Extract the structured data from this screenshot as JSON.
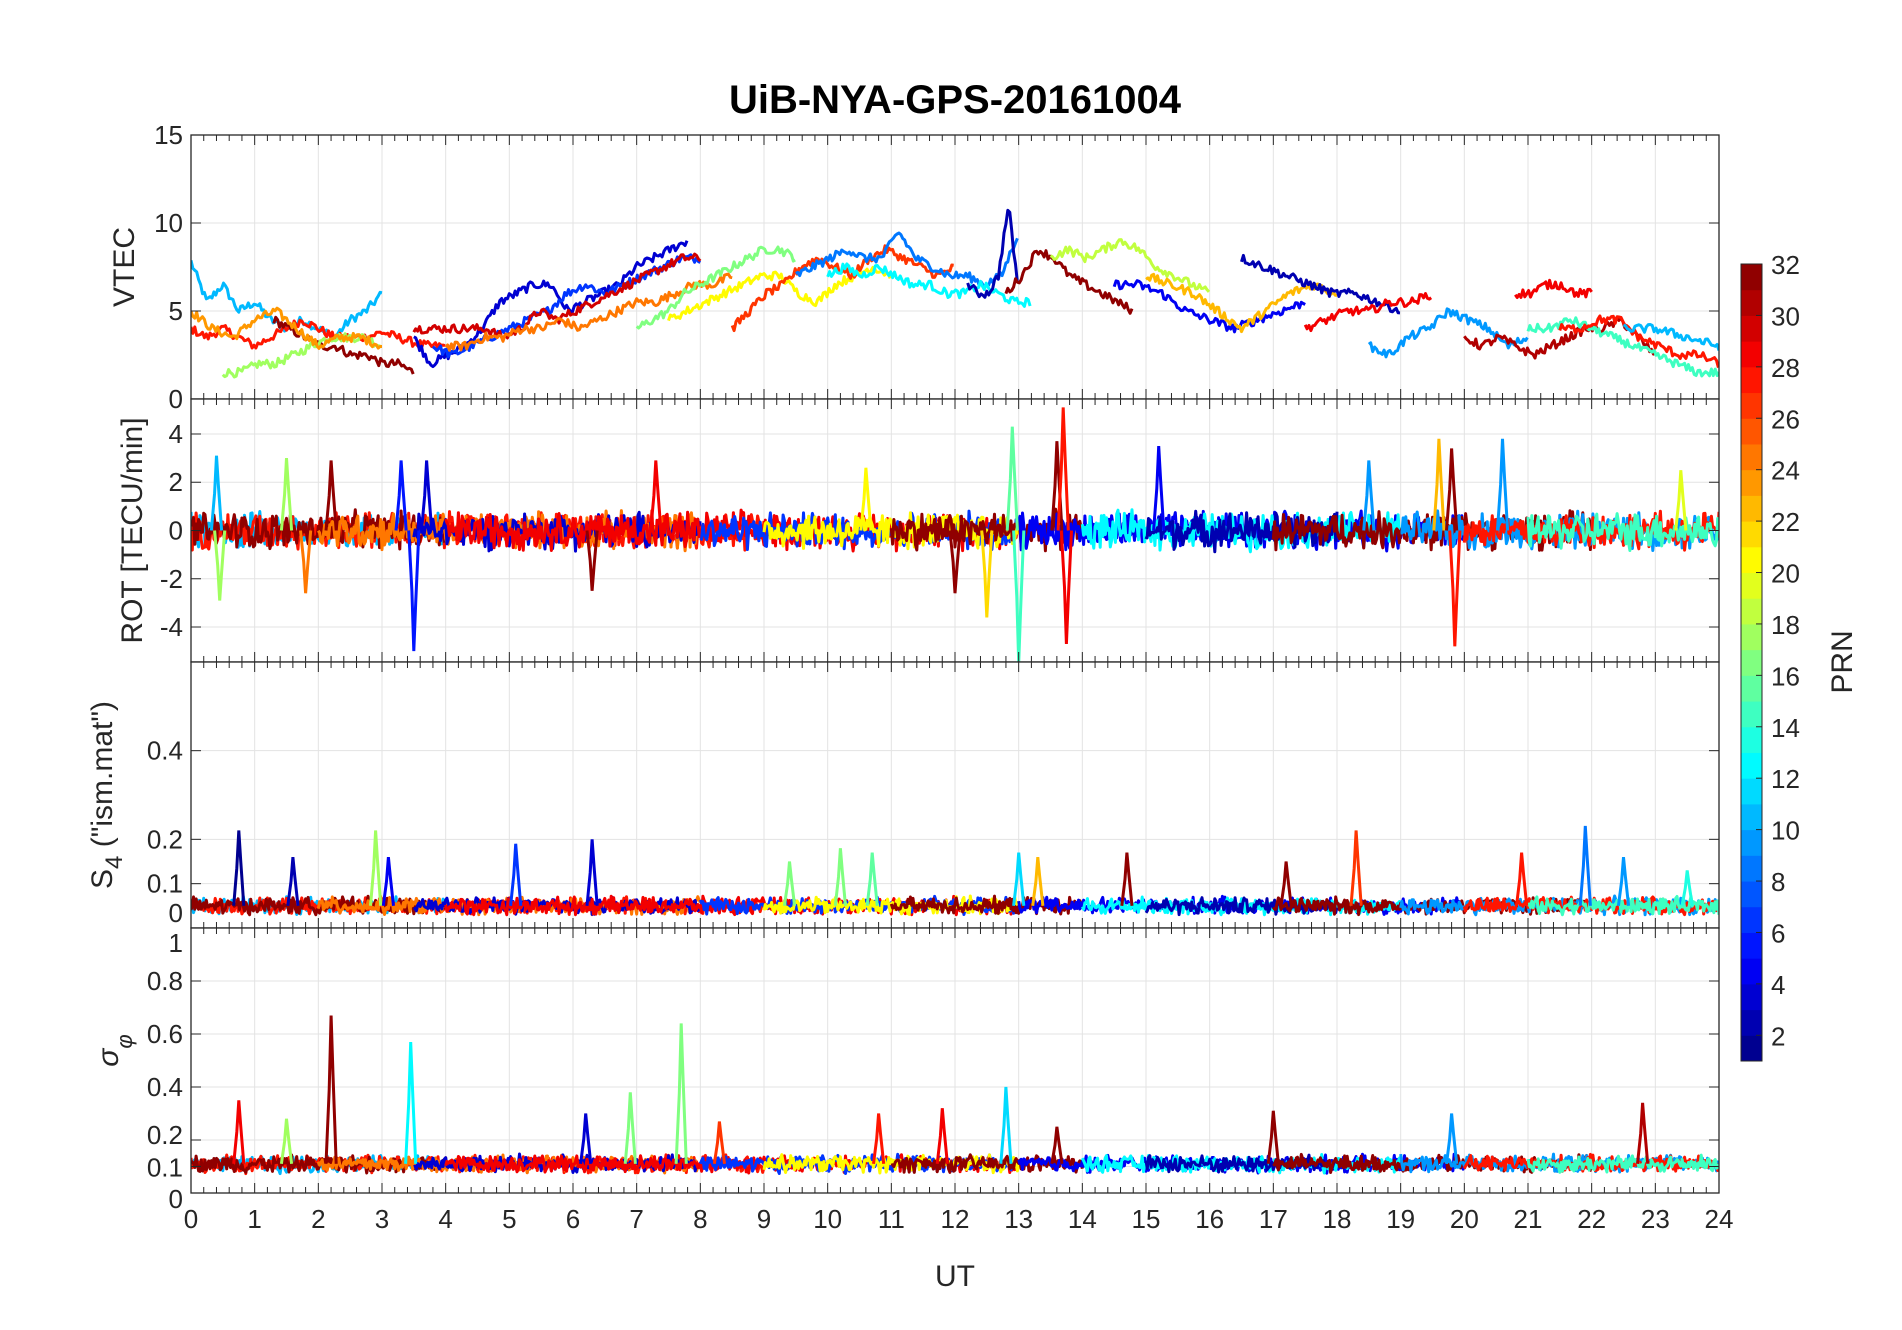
{
  "chart_data": {
    "type": "line",
    "title": "UiB-NYA-GPS-20161004",
    "xlabel": "UT",
    "xlim": [
      0,
      24
    ],
    "xticks": [
      "0",
      "1",
      "2",
      "3",
      "4",
      "5",
      "6",
      "7",
      "8",
      "9",
      "10",
      "11",
      "12",
      "13",
      "14",
      "15",
      "16",
      "17",
      "18",
      "19",
      "20",
      "21",
      "22",
      "23",
      "24"
    ],
    "grid": true,
    "colorbar": {
      "label": "PRN",
      "range": [
        1,
        32
      ],
      "colormap": "jet",
      "ticks": [
        "2",
        "4",
        "6",
        "8",
        "10",
        "12",
        "14",
        "16",
        "18",
        "20",
        "22",
        "24",
        "26",
        "28",
        "30",
        "32"
      ]
    },
    "panels": [
      {
        "id": "vtec",
        "ylabel": "VTEC",
        "ylim": [
          0,
          15
        ],
        "yticks": [
          {
            "v": 0,
            "t": "0"
          },
          {
            "v": 5,
            "t": "5"
          },
          {
            "v": 10,
            "t": "10"
          },
          {
            "v": 15,
            "t": "15"
          }
        ],
        "series": [
          {
            "prn": 10,
            "t0": 0,
            "t1": 3,
            "values": [
              7.8,
              5.5,
              6.5,
              5,
              5.5,
              4.5,
              4,
              4.5,
              4,
              3.5,
              4.5,
              5,
              6
            ]
          },
          {
            "prn": 27,
            "t0": 0,
            "t1": 4,
            "values": [
              4,
              3.5,
              4,
              3.5,
              3,
              3.5,
              4,
              4.5,
              4,
              3.5,
              3.5,
              3.5,
              3.8,
              3.5,
              3.2,
              3,
              3
            ]
          },
          {
            "prn": 31,
            "t0": 1.3,
            "t1": 3.5,
            "values": [
              4.5,
              4,
              3.5,
              3,
              3,
              2.5,
              2.5,
              2,
              2,
              1.5
            ]
          },
          {
            "prn": 17,
            "t0": 0.5,
            "t1": 3,
            "values": [
              1.5,
              1.5,
              2,
              2,
              2.5,
              3,
              3.5,
              3.5,
              3.5,
              3
            ]
          },
          {
            "prn": 23,
            "t0": 0,
            "t1": 3,
            "values": [
              5,
              4,
              3.5,
              4.5,
              5,
              4,
              3,
              3.5,
              3.5,
              3
            ]
          },
          {
            "prn": 3,
            "t0": 3.5,
            "t1": 7.8,
            "values": [
              3.5,
              2,
              2.5,
              3,
              4,
              5.5,
              6,
              6.5,
              6.5,
              5,
              5.5,
              6,
              6.5,
              7.5,
              8,
              8.5,
              9
            ]
          },
          {
            "prn": 6,
            "t0": 3.8,
            "t1": 8,
            "values": [
              3,
              2.5,
              3,
              3.5,
              4,
              4.5,
              5,
              6,
              6.5,
              6,
              6.5,
              7,
              7.5,
              8,
              8
            ]
          },
          {
            "prn": 29,
            "t0": 3.5,
            "t1": 8,
            "values": [
              4,
              4,
              4,
              4,
              4,
              3.5,
              4,
              5,
              4.5,
              5,
              5.5,
              6,
              6.5,
              7,
              7.5,
              8,
              8
            ]
          },
          {
            "prn": 24,
            "t0": 4,
            "t1": 8.5,
            "values": [
              3,
              3,
              3.5,
              3.5,
              4,
              4,
              4.5,
              4,
              4.5,
              5,
              5.5,
              5.5,
              6,
              6.5,
              6.5,
              7
            ]
          },
          {
            "prn": 16,
            "t0": 7,
            "t1": 9.5,
            "values": [
              4,
              4.5,
              5,
              6,
              6.5,
              7,
              7.5,
              8,
              8.5,
              8.5,
              8
            ]
          },
          {
            "prn": 20,
            "t0": 7.5,
            "t1": 11,
            "values": [
              4.5,
              5,
              5.5,
              6,
              6.5,
              7,
              7,
              6,
              5.5,
              6.5,
              7,
              7.5,
              7
            ]
          },
          {
            "prn": 26,
            "t0": 8.5,
            "t1": 12,
            "values": [
              4,
              5,
              6,
              6.5,
              7.5,
              8,
              7.5,
              7,
              8,
              8.5,
              8,
              7.5,
              7,
              7.5
            ]
          },
          {
            "prn": 8,
            "t0": 9.5,
            "t1": 13,
            "values": [
              7,
              7.5,
              8,
              8.5,
              8,
              8,
              9.5,
              8,
              7.5,
              7,
              7,
              6.5,
              7,
              9.5
            ]
          },
          {
            "prn": 12,
            "t0": 10,
            "t1": 13.2,
            "values": [
              7,
              7.5,
              7,
              7.5,
              7,
              6.5,
              6.5,
              6,
              6,
              6.5,
              6,
              5.5,
              5.5
            ]
          },
          {
            "prn": 2,
            "t0": 12.2,
            "t1": 13,
            "values": [
              6.5,
              6,
              6,
              7,
              11,
              6
            ]
          },
          {
            "prn": 31,
            "t0": 12.8,
            "t1": 14.8,
            "values": [
              6,
              7,
              8.5,
              8,
              7,
              6.5,
              6,
              5.5,
              5
            ]
          },
          {
            "prn": 18,
            "t0": 13.5,
            "t1": 16,
            "values": [
              8,
              8.5,
              8,
              8.5,
              9,
              8.5,
              7.5,
              7,
              6.5,
              6
            ]
          },
          {
            "prn": 4,
            "t0": 14.5,
            "t1": 17.5,
            "values": [
              6.5,
              6.5,
              6,
              5,
              4.5,
              4,
              4.5,
              5,
              5.5
            ]
          },
          {
            "prn": 22,
            "t0": 15,
            "t1": 18,
            "values": [
              7,
              6.5,
              6,
              5,
              4,
              5,
              6,
              6.5,
              6
            ]
          },
          {
            "prn": 2,
            "t0": 16.5,
            "t1": 19,
            "values": [
              8,
              7.5,
              7,
              6.5,
              6,
              6,
              5.5,
              5
            ]
          },
          {
            "prn": 28,
            "t0": 17.5,
            "t1": 19.5,
            "values": [
              4,
              4.5,
              5,
              5,
              5.5,
              5.5,
              6
            ]
          },
          {
            "prn": 9,
            "t0": 18.5,
            "t1": 21,
            "values": [
              3,
              2.5,
              3.5,
              4,
              5,
              4.5,
              4,
              3,
              3.5
            ]
          },
          {
            "prn": 28,
            "t0": 20.8,
            "t1": 22,
            "values": [
              6,
              6,
              6.5,
              6.5,
              6,
              6
            ]
          },
          {
            "prn": 30,
            "t0": 20,
            "t1": 23,
            "values": [
              3.5,
              3,
              3.5,
              3,
              2.5,
              3,
              3.5,
              4,
              4,
              4.5,
              3.5,
              2.5
            ]
          },
          {
            "prn": 14,
            "t0": 21,
            "t1": 24,
            "values": [
              4,
              4,
              4.5,
              4,
              3.5,
              3,
              2.5,
              2,
              1.5,
              1.5
            ]
          },
          {
            "prn": 27,
            "t0": 21.5,
            "t1": 24,
            "values": [
              4,
              4,
              4.5,
              4.5,
              3.5,
              3,
              2.5,
              2.5,
              2
            ]
          },
          {
            "prn": 10,
            "t0": 22.5,
            "t1": 24,
            "values": [
              4,
              4,
              3.5,
              3
            ]
          }
        ]
      },
      {
        "id": "rot",
        "ylabel": "ROT [TECU/min]",
        "ylim": [
          -5.45,
          5.45
        ],
        "yticks": [
          {
            "v": -4,
            "t": "-4"
          },
          {
            "v": -2,
            "t": "-2"
          },
          {
            "v": 0,
            "t": "0"
          },
          {
            "v": 2,
            "t": "2"
          },
          {
            "v": 4,
            "t": "4"
          }
        ],
        "baseline": 0,
        "noise": 0.6,
        "segments": [
          [
            10,
            0,
            4
          ],
          [
            27,
            0,
            9
          ],
          [
            31,
            0,
            4
          ],
          [
            24,
            2,
            8
          ],
          [
            3,
            3.5,
            8
          ],
          [
            28,
            4,
            13
          ],
          [
            6,
            8,
            13
          ],
          [
            20,
            9,
            13
          ],
          [
            31,
            11,
            14
          ],
          [
            4,
            13,
            20
          ],
          [
            12,
            14,
            19
          ],
          [
            2,
            15,
            18
          ],
          [
            31,
            17,
            22
          ],
          [
            9,
            19,
            24
          ],
          [
            27,
            20,
            24
          ],
          [
            14,
            21,
            24
          ]
        ],
        "spikes": [
          [
            0.4,
            3.1,
            10
          ],
          [
            0.45,
            -2.9,
            17
          ],
          [
            1.5,
            3,
            17
          ],
          [
            1.8,
            -2.6,
            24
          ],
          [
            2.2,
            2.9,
            31
          ],
          [
            3.3,
            2.9,
            5
          ],
          [
            3.5,
            -5,
            5
          ],
          [
            3.7,
            2.9,
            3
          ],
          [
            6.3,
            -2.5,
            31
          ],
          [
            7.3,
            2.9,
            28
          ],
          [
            10.6,
            2.6,
            20
          ],
          [
            12,
            -2.6,
            31
          ],
          [
            12.5,
            -3.6,
            21
          ],
          [
            12.9,
            4.3,
            15
          ],
          [
            13.0,
            -5.5,
            14
          ],
          [
            13.6,
            3.7,
            31
          ],
          [
            13.7,
            5.1,
            27
          ],
          [
            13.75,
            -4.7,
            28
          ],
          [
            15.2,
            3.5,
            4
          ],
          [
            18.5,
            2.9,
            9
          ],
          [
            19.6,
            3.8,
            22
          ],
          [
            19.8,
            3.4,
            31
          ],
          [
            19.85,
            -4.8,
            27
          ],
          [
            20.6,
            3.8,
            9
          ],
          [
            23.4,
            2.5,
            19
          ]
        ]
      },
      {
        "id": "s4",
        "ylabel": "S4 (\"ism.mat\")",
        "ylim": [
          0,
          0.6
        ],
        "yticks": [
          {
            "v": 0,
            "t": "0"
          },
          {
            "v": 0.1,
            "t": "0.1"
          },
          {
            "v": 0.2,
            "t": "0.2"
          },
          {
            "v": 0.4,
            "t": "0.4"
          }
        ],
        "baseline": 0.05,
        "noise": 0.015,
        "segments": [
          [
            10,
            0,
            4
          ],
          [
            27,
            0,
            9
          ],
          [
            31,
            0,
            4
          ],
          [
            24,
            2,
            8
          ],
          [
            3,
            3.5,
            8
          ],
          [
            28,
            4,
            13
          ],
          [
            6,
            8,
            13
          ],
          [
            20,
            9,
            13
          ],
          [
            31,
            11,
            14
          ],
          [
            4,
            13,
            20
          ],
          [
            12,
            14,
            19
          ],
          [
            2,
            15,
            18
          ],
          [
            31,
            17,
            22
          ],
          [
            9,
            19,
            24
          ],
          [
            27,
            20,
            24
          ],
          [
            14,
            21,
            24
          ]
        ],
        "spikes": [
          [
            0.75,
            0.22,
            1
          ],
          [
            1.6,
            0.16,
            2
          ],
          [
            2.9,
            0.22,
            17
          ],
          [
            3.1,
            0.16,
            4
          ],
          [
            5.1,
            0.19,
            6
          ],
          [
            6.3,
            0.2,
            3
          ],
          [
            9.4,
            0.15,
            16
          ],
          [
            10.2,
            0.18,
            16
          ],
          [
            10.7,
            0.17,
            15
          ],
          [
            13.0,
            0.17,
            11
          ],
          [
            13.3,
            0.16,
            22
          ],
          [
            14.7,
            0.17,
            31
          ],
          [
            17.2,
            0.15,
            31
          ],
          [
            18.3,
            0.22,
            26
          ],
          [
            20.9,
            0.17,
            27
          ],
          [
            21.9,
            0.23,
            8
          ],
          [
            22.5,
            0.16,
            9
          ],
          [
            23.5,
            0.13,
            13
          ]
        ]
      },
      {
        "id": "sigma_phi",
        "ylabel": "σφ",
        "ylim": [
          0,
          1
        ],
        "yticks": [
          {
            "v": 0,
            "t": "0"
          },
          {
            "v": 0.1,
            "t": "0.1"
          },
          {
            "v": 0.2,
            "t": "0.2"
          },
          {
            "v": 0.4,
            "t": "0.4"
          },
          {
            "v": 0.6,
            "t": "0.6"
          },
          {
            "v": 0.8,
            "t": "0.8"
          },
          {
            "v": 1,
            "t": "1"
          }
        ],
        "baseline": 0.11,
        "noise": 0.025,
        "segments": [
          [
            10,
            0,
            4
          ],
          [
            27,
            0,
            9
          ],
          [
            31,
            0,
            4
          ],
          [
            24,
            2,
            8
          ],
          [
            3,
            3.5,
            8
          ],
          [
            28,
            4,
            13
          ],
          [
            6,
            8,
            13
          ],
          [
            20,
            9,
            13
          ],
          [
            31,
            11,
            14
          ],
          [
            4,
            13,
            20
          ],
          [
            12,
            14,
            19
          ],
          [
            2,
            15,
            18
          ],
          [
            31,
            17,
            22
          ],
          [
            9,
            19,
            24
          ],
          [
            27,
            20,
            24
          ],
          [
            14,
            21,
            24
          ]
        ],
        "spikes": [
          [
            0.75,
            0.35,
            28
          ],
          [
            1.5,
            0.28,
            17
          ],
          [
            2.2,
            0.67,
            31
          ],
          [
            3.45,
            0.57,
            12
          ],
          [
            6.2,
            0.3,
            3
          ],
          [
            6.9,
            0.38,
            16
          ],
          [
            7.7,
            0.64,
            16
          ],
          [
            8.3,
            0.27,
            26
          ],
          [
            10.8,
            0.3,
            27
          ],
          [
            11.8,
            0.32,
            28
          ],
          [
            12.8,
            0.4,
            11
          ],
          [
            13.6,
            0.25,
            31
          ],
          [
            17,
            0.31,
            31
          ],
          [
            19.8,
            0.3,
            9
          ],
          [
            22.8,
            0.34,
            30
          ]
        ]
      }
    ]
  }
}
